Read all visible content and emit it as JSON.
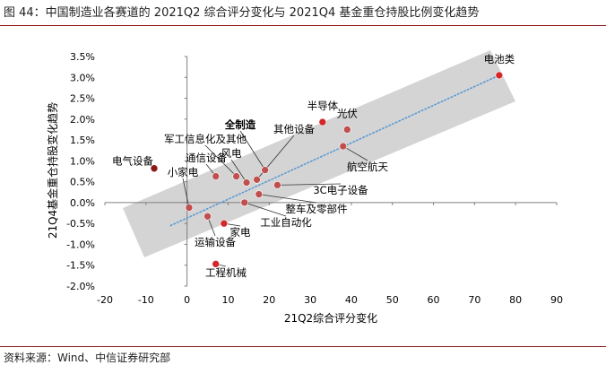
{
  "figure": {
    "title": "图 44：中国制造业各赛道的 2021Q2 综合评分变化与 2021Q4 基金重仓持股比例变化趋势",
    "source": "资料来源：Wind、中信证券研究部"
  },
  "chart_data": {
    "type": "scatter",
    "xlabel": "21Q2综合评分变化",
    "ylabel": "21Q4基金重仓持股变化趋势",
    "xlim": [
      -20,
      90
    ],
    "ylim": [
      -2.0,
      3.5
    ],
    "x_ticks": [
      "-20",
      "-10",
      "0",
      "10",
      "20",
      "30",
      "40",
      "50",
      "60",
      "70",
      "80",
      "90"
    ],
    "y_ticks": [
      "-2.0%",
      "-1.5%",
      "-1.0%",
      "-0.5%",
      "0.0%",
      "0.5%",
      "1.0%",
      "1.5%",
      "2.0%",
      "2.5%",
      "3.0%",
      "3.5%"
    ],
    "y_unit": "%",
    "grid": false,
    "trendline": {
      "style": "dotted",
      "color": "#5b9bd5",
      "from": [
        -4,
        -0.55
      ],
      "to": [
        76,
        3.05
      ]
    },
    "band": {
      "color": "#d4d4d4"
    },
    "points": [
      {
        "label": "电池类",
        "x": 76,
        "y": 3.05,
        "color": "#d62728"
      },
      {
        "label": "半导体",
        "x": 33,
        "y": 1.93,
        "color": "#d62728"
      },
      {
        "label": "光伏",
        "x": 39,
        "y": 1.75,
        "color": "#c0504d"
      },
      {
        "label": "航空航天",
        "x": 38,
        "y": 1.35,
        "color": "#c0504d"
      },
      {
        "label": "电气设备",
        "x": -8,
        "y": 0.82,
        "color": "#8b1a1a"
      },
      {
        "label": "全制造",
        "x": 19,
        "y": 0.78,
        "color": "#c0504d"
      },
      {
        "label": "其他设备",
        "x": 17,
        "y": 0.55,
        "color": "#c0504d"
      },
      {
        "label": "军工信息化及其他",
        "x": 12,
        "y": 0.63,
        "color": "#c0504d"
      },
      {
        "label": "通信设备",
        "x": 7,
        "y": 0.63,
        "color": "#c0504d"
      },
      {
        "label": "风电",
        "x": 14.5,
        "y": 0.48,
        "color": "#c0504d"
      },
      {
        "label": "3C电子设备",
        "x": 22,
        "y": 0.42,
        "color": "#c0504d"
      },
      {
        "label": "整车及零部件",
        "x": 17.5,
        "y": 0.2,
        "color": "#c0504d"
      },
      {
        "label": "工业自动化",
        "x": 14,
        "y": 0.0,
        "color": "#c0504d"
      },
      {
        "label": "小家电",
        "x": 0.5,
        "y": -0.12,
        "color": "#c0504d"
      },
      {
        "label": "运输设备",
        "x": 5,
        "y": -0.33,
        "color": "#c0504d"
      },
      {
        "label": "家电",
        "x": 9,
        "y": -0.5,
        "color": "#d62728"
      },
      {
        "label": "工程机械",
        "x": 7,
        "y": -1.47,
        "color": "#d62728"
      }
    ]
  }
}
